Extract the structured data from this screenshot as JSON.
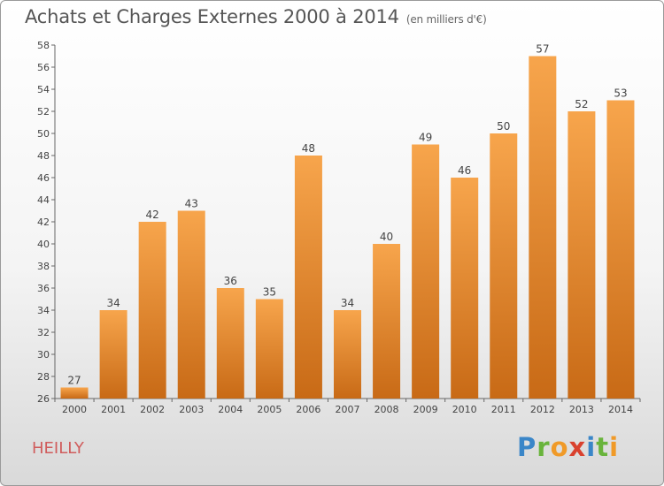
{
  "header": {
    "title": "Achats et Charges Externes 2000 à 2014",
    "unit": "(en milliers d'€)"
  },
  "footer": {
    "commune": "HEILLY",
    "logo": "Proxiti"
  },
  "colors": {
    "bar_top": "#f7a54c",
    "bar_bottom": "#c86a16",
    "commune_text": "#d05c5c"
  },
  "chart_data": {
    "type": "bar",
    "categories": [
      "2000",
      "2001",
      "2002",
      "2003",
      "2004",
      "2005",
      "2006",
      "2007",
      "2008",
      "2009",
      "2010",
      "2011",
      "2012",
      "2013",
      "2014"
    ],
    "values": [
      27,
      34,
      42,
      43,
      36,
      35,
      48,
      34,
      40,
      49,
      46,
      50,
      57,
      52,
      53
    ],
    "ylim": [
      26,
      58
    ],
    "yticks": [
      26,
      28,
      30,
      32,
      34,
      36,
      38,
      40,
      42,
      44,
      46,
      48,
      50,
      52,
      54,
      56,
      58
    ],
    "grid": false,
    "legend": "none"
  }
}
